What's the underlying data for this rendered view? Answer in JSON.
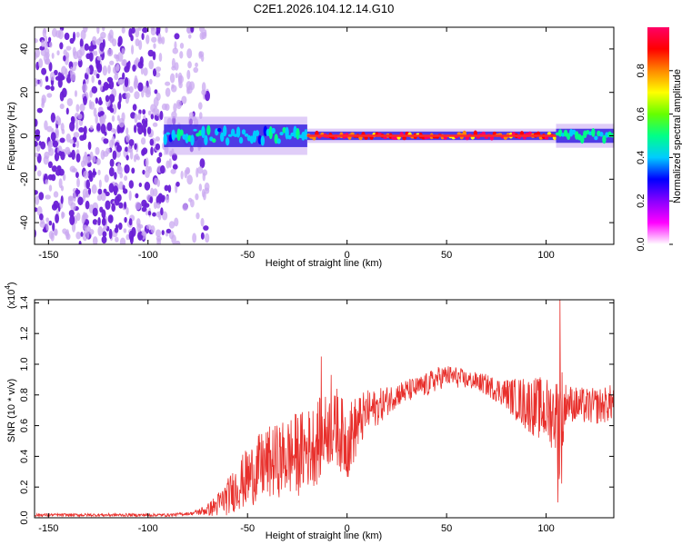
{
  "title": "C2E1.2026.104.12.14.G10",
  "colors": {
    "signal": "#e8302c",
    "track": "#ff2a2a",
    "noise_dark": "#6a1fd6",
    "noise_light": "#c9a8f0",
    "axis": "#000000"
  },
  "colorbar": {
    "label": "Normalized spectral amplitude",
    "ticks": [
      "0.0",
      "0.2",
      "0.4",
      "0.6",
      "0.8"
    ],
    "tick_values": [
      0.0,
      0.2,
      0.4,
      0.6,
      0.8
    ],
    "range": [
      0,
      1
    ],
    "stops": [
      "#ffffff",
      "#ff00ff",
      "#8800ff",
      "#0000ff",
      "#00ccff",
      "#00ff88",
      "#66ff00",
      "#ffff00",
      "#ff8800",
      "#ff0000",
      "#ff0066"
    ]
  },
  "chart_data": [
    {
      "type": "heatmap",
      "name": "spectrogram",
      "title": "C2E1.2026.104.12.14.G10",
      "xlabel": "Height of straight line (km)",
      "ylabel": "Frequency (Hz)",
      "xlim": [
        -157,
        134
      ],
      "ylim": [
        -50,
        50
      ],
      "x_ticks": [
        -150,
        -100,
        -50,
        0,
        50,
        100
      ],
      "y_ticks": [
        -40,
        -20,
        0,
        20,
        40
      ],
      "x_tick_labels": [
        "-150",
        "-100",
        "-50",
        "0",
        "50",
        "100"
      ],
      "y_tick_labels": [
        "-40",
        "-20",
        "0",
        "20",
        "40"
      ],
      "noise_region_x": [
        -157,
        -70
      ],
      "track_frequency": 0,
      "track_segments": [
        {
          "x_start": -92,
          "x_end": -20,
          "spread_hz": 4,
          "amplitude": 0.45
        },
        {
          "x_start": -20,
          "x_end": 105,
          "spread_hz": 1.5,
          "amplitude": 0.95
        },
        {
          "x_start": 105,
          "x_end": 134,
          "spread_hz": 2.5,
          "amplitude": 0.5
        }
      ]
    },
    {
      "type": "line",
      "name": "snr",
      "xlabel": "Height of straight line (km)",
      "ylabel": "SNR (10 * v/v)",
      "y_multiplier": "(x10",
      "y_multiplier_exp": "4",
      "y_multiplier_close": ")",
      "xlim": [
        -157,
        134
      ],
      "ylim": [
        0,
        1.42
      ],
      "x_ticks": [
        -150,
        -100,
        -50,
        0,
        50,
        100
      ],
      "y_ticks": [
        0.0,
        0.2,
        0.4,
        0.6,
        0.8,
        1.0,
        1.2,
        1.4
      ],
      "x_tick_labels": [
        "-150",
        "-100",
        "-50",
        "0",
        "50",
        "100"
      ],
      "y_tick_labels": [
        "0.0",
        "0.2",
        "0.4",
        "0.6",
        "0.8",
        "1.0",
        "1.2",
        "1.4"
      ],
      "series": [
        {
          "name": "SNR envelope",
          "x": [
            -157,
            -120,
            -90,
            -78,
            -70,
            -65,
            -60,
            -55,
            -50,
            -45,
            -40,
            -35,
            -30,
            -25,
            -20,
            -15,
            -10,
            -5,
            0,
            5,
            10,
            15,
            20,
            25,
            30,
            35,
            40,
            45,
            50,
            55,
            60,
            65,
            70,
            75,
            80,
            85,
            90,
            95,
            100,
            105,
            107,
            110,
            115,
            120,
            125,
            130,
            134
          ],
          "base": [
            0.02,
            0.02,
            0.02,
            0.03,
            0.06,
            0.1,
            0.16,
            0.24,
            0.3,
            0.36,
            0.4,
            0.42,
            0.45,
            0.47,
            0.5,
            0.55,
            0.62,
            0.62,
            0.55,
            0.64,
            0.72,
            0.74,
            0.78,
            0.82,
            0.84,
            0.86,
            0.88,
            0.92,
            0.94,
            0.93,
            0.91,
            0.9,
            0.88,
            0.85,
            0.83,
            0.8,
            0.78,
            0.76,
            0.74,
            0.72,
            0.66,
            0.78,
            0.76,
            0.75,
            0.75,
            0.76,
            0.78
          ],
          "spread": [
            0.01,
            0.01,
            0.01,
            0.01,
            0.04,
            0.08,
            0.12,
            0.16,
            0.2,
            0.22,
            0.24,
            0.24,
            0.26,
            0.28,
            0.26,
            0.28,
            0.24,
            0.24,
            0.26,
            0.2,
            0.14,
            0.12,
            0.1,
            0.08,
            0.08,
            0.07,
            0.08,
            0.08,
            0.07,
            0.07,
            0.06,
            0.06,
            0.07,
            0.08,
            0.1,
            0.14,
            0.18,
            0.2,
            0.22,
            0.24,
            0.5,
            0.12,
            0.12,
            0.12,
            0.12,
            0.12,
            0.12
          ]
        }
      ],
      "spikes": [
        {
          "x": -13,
          "y": 1.05
        },
        {
          "x": -8,
          "y": 0.93
        },
        {
          "x": -5,
          "y": 0.84
        },
        {
          "x": 107,
          "y": 1.42
        },
        {
          "x": 106,
          "y": 0.1
        }
      ]
    }
  ]
}
